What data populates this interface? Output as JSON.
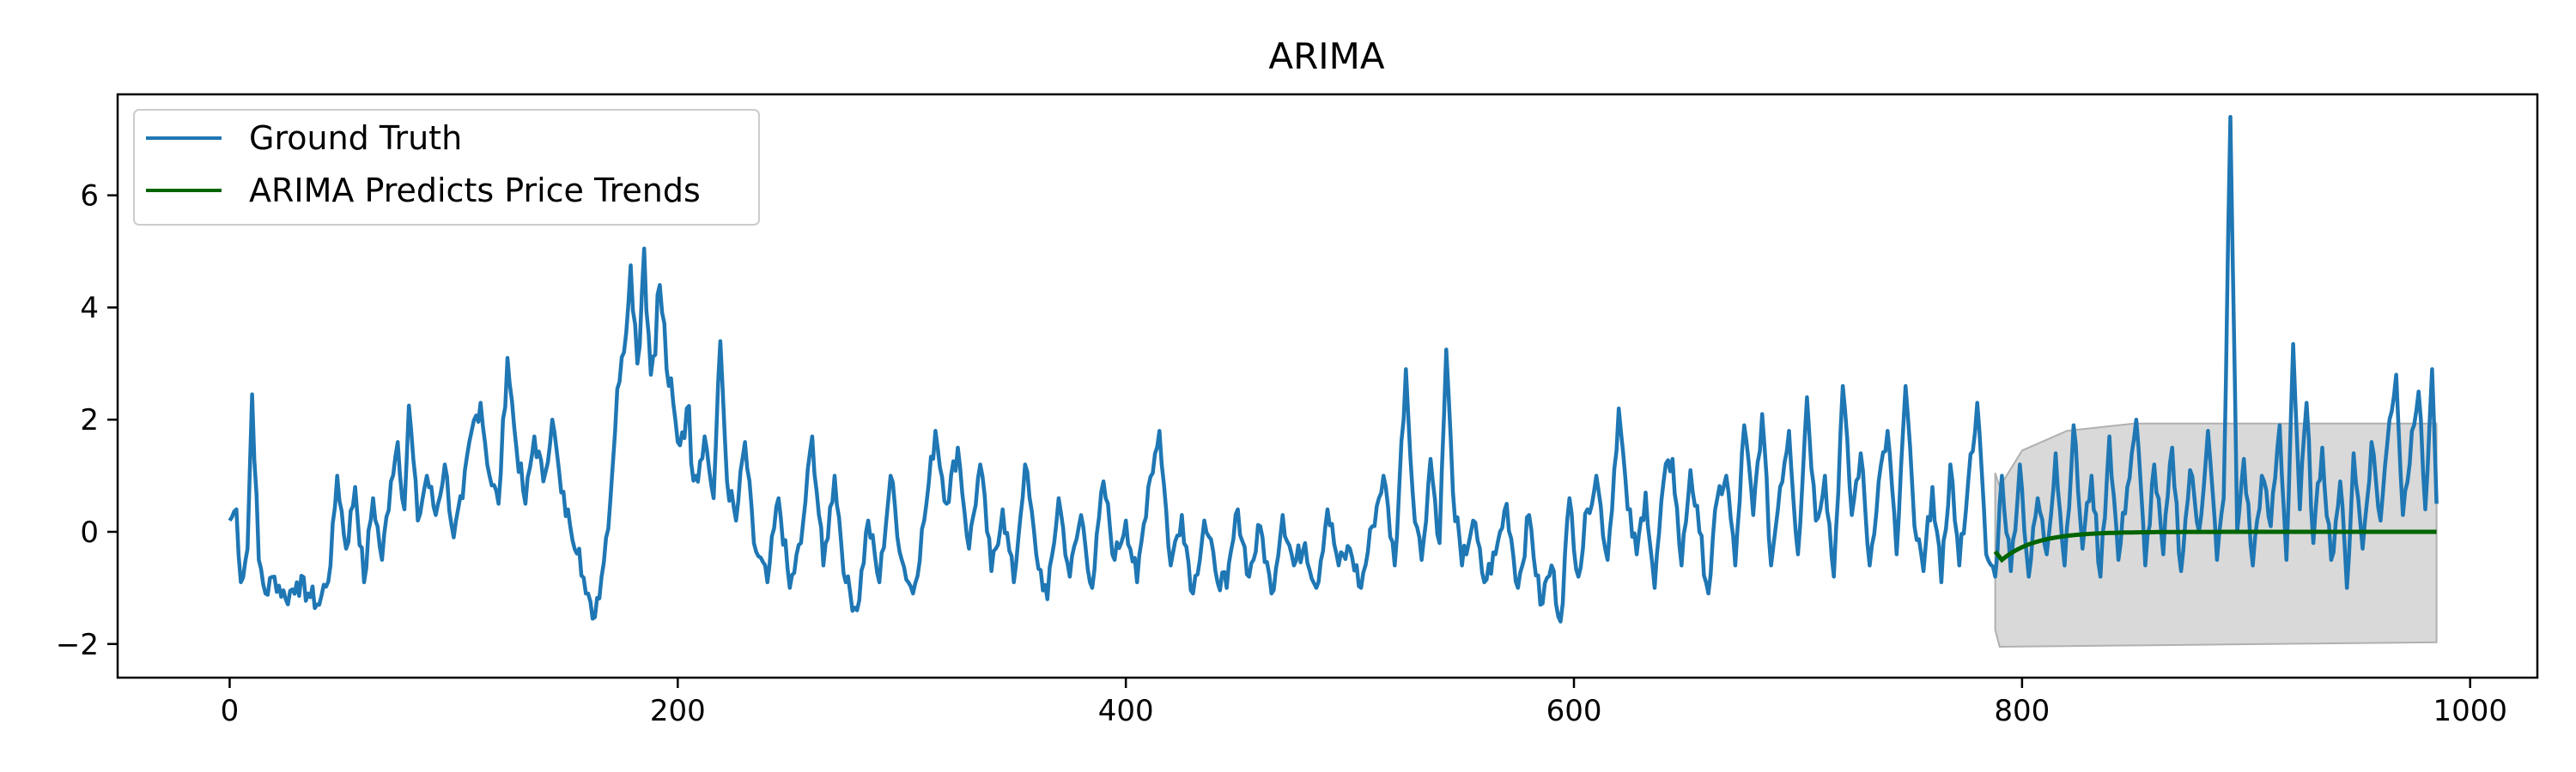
{
  "chart_data": {
    "type": "line",
    "title": "ARIMA",
    "xlabel": "",
    "ylabel": "",
    "xlim": [
      -50,
      1030
    ],
    "ylim": [
      -2.6,
      7.8
    ],
    "x_ticks": [
      0,
      200,
      400,
      600,
      800,
      1000
    ],
    "y_ticks": [
      -2,
      0,
      2,
      4,
      6
    ],
    "grid": false,
    "legend_position": "upper-left",
    "legend": [
      "Ground Truth",
      "ARIMA Predicts Price Trends"
    ],
    "colors": {
      "ground_truth": "#1f77b4",
      "prediction": "#006400",
      "confidence_band": "#d9d9d9",
      "confidence_edge": "#b0b0b0"
    },
    "ground_truth_keypoints": [
      [
        0,
        0.2
      ],
      [
        3,
        0.4
      ],
      [
        5,
        -0.9
      ],
      [
        8,
        -0.3
      ],
      [
        10,
        2.45
      ],
      [
        13,
        -0.5
      ],
      [
        16,
        -1.1
      ],
      [
        20,
        -0.8
      ],
      [
        25,
        -1.2
      ],
      [
        30,
        -0.9
      ],
      [
        35,
        -1.1
      ],
      [
        40,
        -1.3
      ],
      [
        45,
        -0.6
      ],
      [
        48,
        1.0
      ],
      [
        52,
        -0.3
      ],
      [
        56,
        0.8
      ],
      [
        60,
        -0.9
      ],
      [
        64,
        0.6
      ],
      [
        68,
        -0.5
      ],
      [
        72,
        0.9
      ],
      [
        75,
        1.6
      ],
      [
        78,
        0.4
      ],
      [
        80,
        2.25
      ],
      [
        84,
        0.2
      ],
      [
        88,
        1.0
      ],
      [
        92,
        0.3
      ],
      [
        96,
        1.2
      ],
      [
        100,
        -0.1
      ],
      [
        104,
        0.6
      ],
      [
        108,
        1.8
      ],
      [
        112,
        2.3
      ],
      [
        116,
        1.0
      ],
      [
        120,
        0.5
      ],
      [
        124,
        3.1
      ],
      [
        128,
        1.5
      ],
      [
        132,
        0.5
      ],
      [
        136,
        1.7
      ],
      [
        140,
        0.9
      ],
      [
        144,
        2.0
      ],
      [
        148,
        0.7
      ],
      [
        152,
        0.1
      ],
      [
        156,
        -0.3
      ],
      [
        159,
        -1.1
      ],
      [
        162,
        -1.55
      ],
      [
        166,
        -0.8
      ],
      [
        170,
        0.6
      ],
      [
        173,
        2.55
      ],
      [
        176,
        3.2
      ],
      [
        179,
        4.75
      ],
      [
        182,
        3.0
      ],
      [
        185,
        5.05
      ],
      [
        188,
        2.8
      ],
      [
        192,
        4.4
      ],
      [
        196,
        2.6
      ],
      [
        200,
        1.6
      ],
      [
        204,
        2.2
      ],
      [
        208,
        1.0
      ],
      [
        212,
        1.7
      ],
      [
        216,
        0.6
      ],
      [
        219,
        3.4
      ],
      [
        222,
        0.9
      ],
      [
        226,
        0.2
      ],
      [
        230,
        1.6
      ],
      [
        234,
        -0.2
      ],
      [
        240,
        -0.9
      ],
      [
        245,
        0.6
      ],
      [
        250,
        -1.0
      ],
      [
        255,
        -0.2
      ],
      [
        260,
        1.7
      ],
      [
        265,
        -0.6
      ],
      [
        270,
        1.0
      ],
      [
        275,
        -0.9
      ],
      [
        280,
        -1.4
      ],
      [
        285,
        0.2
      ],
      [
        290,
        -0.9
      ],
      [
        295,
        1.0
      ],
      [
        300,
        -0.5
      ],
      [
        305,
        -1.1
      ],
      [
        310,
        0.2
      ],
      [
        315,
        1.8
      ],
      [
        320,
        0.5
      ],
      [
        325,
        1.5
      ],
      [
        330,
        -0.3
      ],
      [
        335,
        1.2
      ],
      [
        340,
        -0.7
      ],
      [
        345,
        0.4
      ],
      [
        350,
        -0.9
      ],
      [
        355,
        1.2
      ],
      [
        360,
        -0.4
      ],
      [
        365,
        -1.2
      ],
      [
        370,
        0.6
      ],
      [
        375,
        -0.8
      ],
      [
        380,
        0.3
      ],
      [
        385,
        -1.0
      ],
      [
        390,
        0.9
      ],
      [
        395,
        -0.5
      ],
      [
        400,
        0.2
      ],
      [
        405,
        -0.9
      ],
      [
        410,
        0.8
      ],
      [
        415,
        1.8
      ],
      [
        420,
        -0.6
      ],
      [
        425,
        0.3
      ],
      [
        430,
        -1.1
      ],
      [
        435,
        0.2
      ],
      [
        440,
        -0.7
      ],
      [
        445,
        -1.0
      ],
      [
        450,
        0.4
      ],
      [
        455,
        -0.8
      ],
      [
        460,
        0.1
      ],
      [
        465,
        -1.1
      ],
      [
        470,
        0.3
      ],
      [
        475,
        -0.6
      ],
      [
        480,
        -0.2
      ],
      [
        485,
        -1.0
      ],
      [
        490,
        0.4
      ],
      [
        495,
        -0.6
      ],
      [
        500,
        -0.3
      ],
      [
        505,
        -1.0
      ],
      [
        510,
        0.1
      ],
      [
        515,
        1.0
      ],
      [
        520,
        -0.6
      ],
      [
        525,
        2.9
      ],
      [
        528,
        0.7
      ],
      [
        532,
        -0.5
      ],
      [
        536,
        1.3
      ],
      [
        540,
        -0.2
      ],
      [
        543,
        3.25
      ],
      [
        546,
        0.7
      ],
      [
        550,
        -0.6
      ],
      [
        555,
        0.2
      ],
      [
        560,
        -0.9
      ],
      [
        565,
        -0.4
      ],
      [
        570,
        0.5
      ],
      [
        575,
        -1.0
      ],
      [
        580,
        0.3
      ],
      [
        585,
        -1.3
      ],
      [
        590,
        -0.6
      ],
      [
        594,
        -1.6
      ],
      [
        598,
        0.6
      ],
      [
        602,
        -0.8
      ],
      [
        606,
        0.4
      ],
      [
        610,
        1.0
      ],
      [
        615,
        -0.5
      ],
      [
        620,
        2.2
      ],
      [
        624,
        0.4
      ],
      [
        628,
        -0.4
      ],
      [
        632,
        0.7
      ],
      [
        636,
        -1.0
      ],
      [
        640,
        0.9
      ],
      [
        644,
        1.3
      ],
      [
        648,
        -0.6
      ],
      [
        652,
        1.1
      ],
      [
        656,
        0.0
      ],
      [
        660,
        -1.1
      ],
      [
        664,
        0.6
      ],
      [
        668,
        1.0
      ],
      [
        672,
        -0.6
      ],
      [
        676,
        1.9
      ],
      [
        680,
        0.3
      ],
      [
        684,
        2.1
      ],
      [
        688,
        -0.6
      ],
      [
        692,
        0.8
      ],
      [
        696,
        1.8
      ],
      [
        700,
        -0.4
      ],
      [
        704,
        2.4
      ],
      [
        708,
        0.2
      ],
      [
        712,
        1.0
      ],
      [
        716,
        -0.8
      ],
      [
        720,
        2.6
      ],
      [
        724,
        0.3
      ],
      [
        728,
        1.4
      ],
      [
        732,
        -0.6
      ],
      [
        736,
        0.9
      ],
      [
        740,
        1.8
      ],
      [
        744,
        -0.4
      ],
      [
        748,
        2.6
      ],
      [
        752,
        0.1
      ],
      [
        756,
        -0.7
      ],
      [
        760,
        0.8
      ],
      [
        764,
        -0.9
      ],
      [
        768,
        1.2
      ],
      [
        772,
        -0.6
      ],
      [
        776,
        0.9
      ],
      [
        780,
        2.3
      ],
      [
        784,
        -0.4
      ],
      [
        788,
        -0.8
      ],
      [
        791,
        1.0
      ],
      [
        795,
        -0.7
      ],
      [
        799,
        1.2
      ],
      [
        803,
        -0.8
      ],
      [
        807,
        0.6
      ],
      [
        811,
        -0.4
      ],
      [
        815,
        1.4
      ],
      [
        819,
        -0.6
      ],
      [
        823,
        1.9
      ],
      [
        827,
        -0.3
      ],
      [
        831,
        1.0
      ],
      [
        835,
        -0.8
      ],
      [
        839,
        1.7
      ],
      [
        843,
        -0.5
      ],
      [
        847,
        0.8
      ],
      [
        851,
        2.0
      ],
      [
        855,
        -0.6
      ],
      [
        859,
        1.2
      ],
      [
        863,
        -0.4
      ],
      [
        867,
        1.5
      ],
      [
        871,
        -0.7
      ],
      [
        875,
        1.1
      ],
      [
        879,
        0.0
      ],
      [
        883,
        1.8
      ],
      [
        887,
        -0.5
      ],
      [
        890,
        0.6
      ],
      [
        893,
        7.4
      ],
      [
        896,
        0.0
      ],
      [
        899,
        1.3
      ],
      [
        903,
        -0.6
      ],
      [
        907,
        1.0
      ],
      [
        911,
        0.1
      ],
      [
        915,
        1.9
      ],
      [
        918,
        -0.5
      ],
      [
        921,
        3.35
      ],
      [
        924,
        0.4
      ],
      [
        927,
        2.3
      ],
      [
        930,
        -0.2
      ],
      [
        934,
        1.5
      ],
      [
        938,
        -0.5
      ],
      [
        942,
        0.9
      ],
      [
        945,
        -1.0
      ],
      [
        948,
        1.4
      ],
      [
        952,
        -0.3
      ],
      [
        956,
        1.6
      ],
      [
        960,
        0.2
      ],
      [
        964,
        2.0
      ],
      [
        967,
        2.8
      ],
      [
        970,
        0.3
      ],
      [
        974,
        1.8
      ],
      [
        977,
        2.5
      ],
      [
        980,
        0.4
      ],
      [
        983,
        2.9
      ],
      [
        985,
        0.5
      ]
    ],
    "prediction": {
      "x_start": 788,
      "x_end": 985,
      "start_value": -0.35,
      "dip_value": -0.5,
      "final_value": 0.0
    },
    "confidence_band": {
      "x_start": 788,
      "x_end": 985,
      "upper": [
        [
          788,
          1.05
        ],
        [
          790,
          0.8
        ],
        [
          800,
          1.45
        ],
        [
          820,
          1.8
        ],
        [
          850,
          1.93
        ],
        [
          985,
          1.93
        ]
      ],
      "lower": [
        [
          788,
          -1.75
        ],
        [
          790,
          -2.05
        ],
        [
          985,
          -1.97
        ]
      ]
    }
  }
}
